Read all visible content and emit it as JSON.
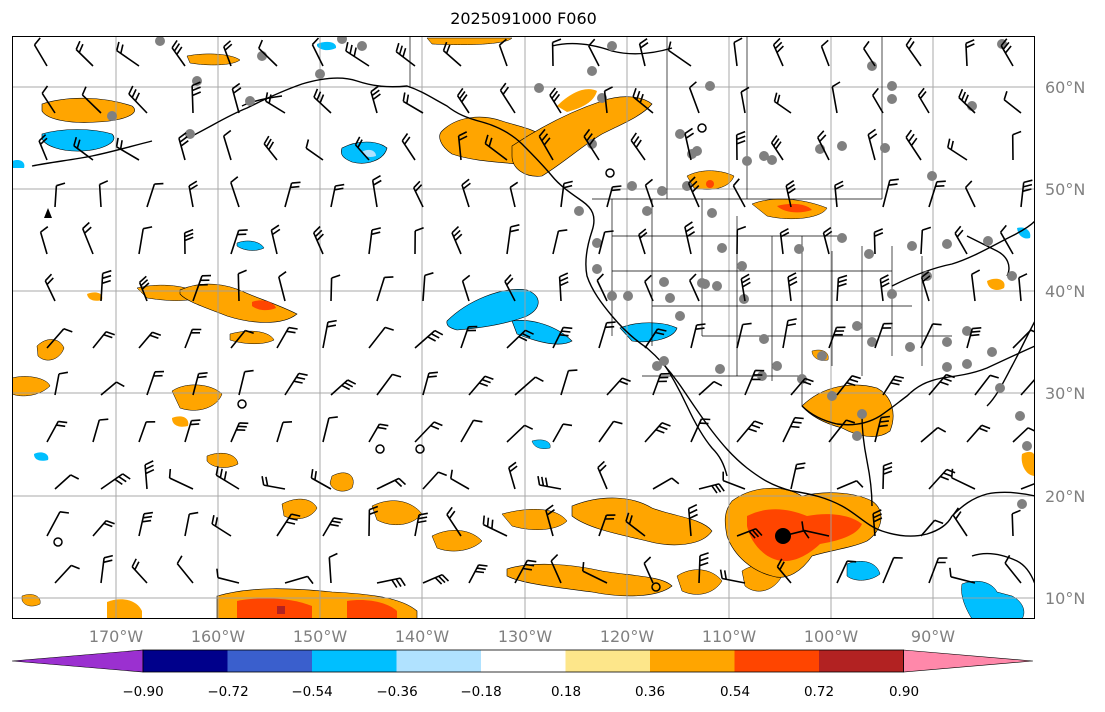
{
  "title": "2025091000 F060",
  "lat_labels": [
    "60°N",
    "50°N",
    "40°N",
    "30°N",
    "20°N",
    "10°N"
  ],
  "lon_labels": [
    "170°W",
    "160°W",
    "150°W",
    "140°W",
    "130°W",
    "120°W",
    "110°W",
    "100°W",
    "90°W"
  ],
  "colorbar": {
    "ticks": [
      "−0.90",
      "−0.72",
      "−0.54",
      "−0.36",
      "−0.18",
      "0.18",
      "0.36",
      "0.54",
      "0.72",
      "0.90"
    ],
    "colors": [
      "#9b30d0",
      "#00008b",
      "#3a5fcd",
      "#00bfff",
      "#b0e2ff",
      "#ffffff",
      "#fde68a",
      "#ffa500",
      "#ff4500",
      "#b22222",
      "#ff88aa"
    ]
  },
  "map_colors": {
    "land_outline": "#000000",
    "grid": "#a0a0a0",
    "positive_light": "#ffa500",
    "positive_mid": "#ff4500",
    "positive_strong": "#b22222",
    "negative_light": "#00bfff",
    "negative_mid": "#b0e2ff",
    "station_dots": "#808080"
  }
}
